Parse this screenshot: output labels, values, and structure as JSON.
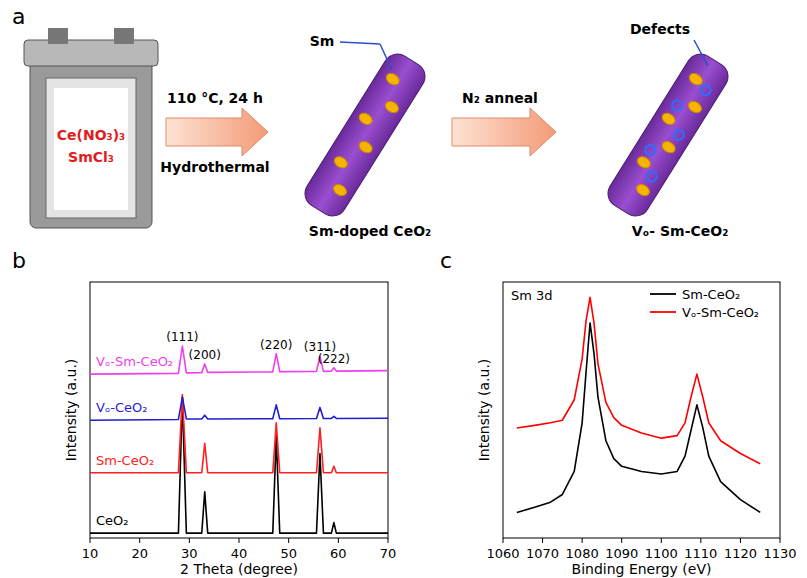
{
  "panel_labels": [
    "a",
    "b",
    "c"
  ],
  "diagram": {
    "reactants": [
      "Ce(NO₃)₃",
      "SmCl₃"
    ],
    "condition": "110 °C, 24 h",
    "method": "Hydrothermal",
    "dopant": "Sm",
    "product1": "Sm-doped CeO₂",
    "step2": "N₂ anneal",
    "defects": "Defects",
    "product2": "Vₒ- Sm-CeO₂"
  },
  "chart_data": [
    {
      "type": "line",
      "x_label": "2 Theta (degree)",
      "y_label": "Intensity (a.u.)",
      "x": [
        10,
        27.8,
        28.6,
        29.4,
        32.5,
        33.1,
        33.7,
        46.8,
        47.5,
        48.2,
        55.6,
        56.3,
        57.0,
        58.6,
        59.1,
        59.6,
        70
      ],
      "series": [
        {
          "name": "CeO₂",
          "color": "#000000",
          "values": [
            1.9,
            1.9,
            55,
            1.9,
            1.9,
            18,
            1.9,
            1.9,
            40,
            1.9,
            1.9,
            33,
            1.9,
            1.9,
            6,
            1.9,
            1.9
          ]
        },
        {
          "name": "Sm-CeO₂",
          "color": "#ff2020",
          "values": [
            25.5,
            25.5,
            56,
            25.5,
            25.5,
            37,
            25.5,
            25.5,
            45,
            25.5,
            25.5,
            43,
            25.5,
            25.5,
            28,
            25.5,
            25.5
          ]
        },
        {
          "name": "Vₒ-CeO₂",
          "color": "#1f1fd0",
          "values": [
            46,
            46.3,
            55,
            46.5,
            46.5,
            48,
            46.5,
            46.6,
            52,
            46.6,
            46.7,
            51,
            46.7,
            46.7,
            47.5,
            46.7,
            46.8
          ]
        },
        {
          "name": "Vₒ-Sm-CeO₂",
          "color": "#ee40ee",
          "values": [
            64,
            64.3,
            75,
            64.5,
            64.6,
            68,
            64.7,
            64.9,
            72,
            65,
            65.1,
            71,
            65.1,
            65.2,
            66.5,
            65.2,
            65.4
          ]
        }
      ],
      "xlim": [
        10,
        70
      ],
      "xticks": [
        10,
        20,
        30,
        40,
        50,
        60,
        70
      ],
      "ylim": [
        0,
        100
      ],
      "tick_labels": "x",
      "annotations": [
        {
          "text": "(111)",
          "x": 28.6
        },
        {
          "text": "(200)",
          "x": 33.1
        },
        {
          "text": "(220)",
          "x": 47.5
        },
        {
          "text": "(311)",
          "x": 56.3
        },
        {
          "text": "(222)",
          "x": 59.1
        }
      ]
    },
    {
      "type": "line",
      "title": "Sm 3d",
      "x_label": "Binding Energy (eV)",
      "y_label": "Intensity (a.u.)",
      "x": [
        1063.5,
        1068,
        1072,
        1075,
        1078,
        1080,
        1081,
        1082,
        1083,
        1084,
        1086,
        1088,
        1090,
        1095,
        1100,
        1104,
        1106,
        1107.5,
        1109,
        1110.5,
        1112,
        1115,
        1120,
        1125
      ],
      "series": [
        {
          "name": "Sm-CeO₂",
          "color": "#000000",
          "values": [
            10,
            12,
            14,
            17,
            26,
            45,
            65,
            84,
            72,
            55,
            38,
            31,
            28,
            26,
            25,
            26,
            32,
            42,
            52,
            43,
            32,
            22,
            15,
            10
          ]
        },
        {
          "name": "Vₒ-Sm-CeO₂",
          "color": "#ff0000",
          "values": [
            43,
            44,
            45,
            46,
            54,
            70,
            85,
            94,
            84,
            68,
            53,
            47,
            44,
            41,
            39,
            40,
            45,
            55,
            64,
            55,
            45,
            38,
            33,
            29
          ]
        }
      ],
      "xlim": [
        1060,
        1130
      ],
      "xticks": [
        1060,
        1070,
        1080,
        1090,
        1100,
        1110,
        1120,
        1130
      ],
      "ylim": [
        0,
        100
      ],
      "tick_labels": "x",
      "legend": "upper right"
    }
  ]
}
